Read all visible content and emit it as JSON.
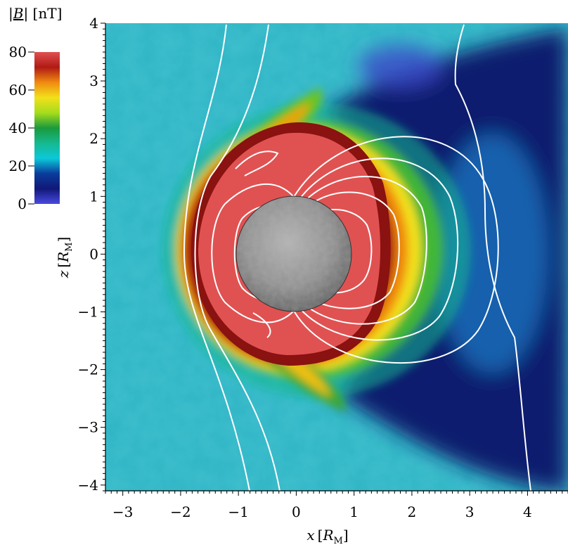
{
  "chart_data": {
    "type": "heatmap",
    "title": "",
    "xlabel": {
      "var": "x",
      "unit": "R",
      "unit_sub": "M"
    },
    "ylabel": {
      "var": "z",
      "unit": "R",
      "unit_sub": "M"
    },
    "xlim": [
      -3.3,
      4.7
    ],
    "ylim": [
      -4.1,
      4.0
    ],
    "x_ticks": [
      -3,
      -2,
      -1,
      0,
      1,
      2,
      3,
      4
    ],
    "y_ticks": [
      4,
      3,
      2,
      1,
      0,
      -1,
      -2,
      -3,
      -4
    ],
    "colorbar": {
      "label": {
        "var": "B",
        "unit": "nT"
      },
      "range": [
        0,
        80
      ],
      "ticks": [
        0,
        20,
        40,
        60,
        80
      ],
      "stops": [
        {
          "value": 0,
          "color": "#4a4ae0"
        },
        {
          "value": 8,
          "color": "#101878"
        },
        {
          "value": 16,
          "color": "#0a3c9c"
        },
        {
          "value": 24,
          "color": "#0cc8d8"
        },
        {
          "value": 32,
          "color": "#16b890"
        },
        {
          "value": 40,
          "color": "#1a9a3c"
        },
        {
          "value": 48,
          "color": "#a6dc1c"
        },
        {
          "value": 56,
          "color": "#f2e01a"
        },
        {
          "value": 64,
          "color": "#f08a10"
        },
        {
          "value": 72,
          "color": "#b01a14"
        },
        {
          "value": 80,
          "color": "#e05050"
        }
      ]
    },
    "planet": {
      "name": "Mercury",
      "center": [
        0,
        0
      ],
      "radius": 1.0
    },
    "field_lines": true,
    "colors": {
      "background_field": "#2fb5c5",
      "magnetosphere": "#e05252",
      "tail_lobe": "#0b1f6e",
      "field_line": "#ffffff"
    }
  }
}
